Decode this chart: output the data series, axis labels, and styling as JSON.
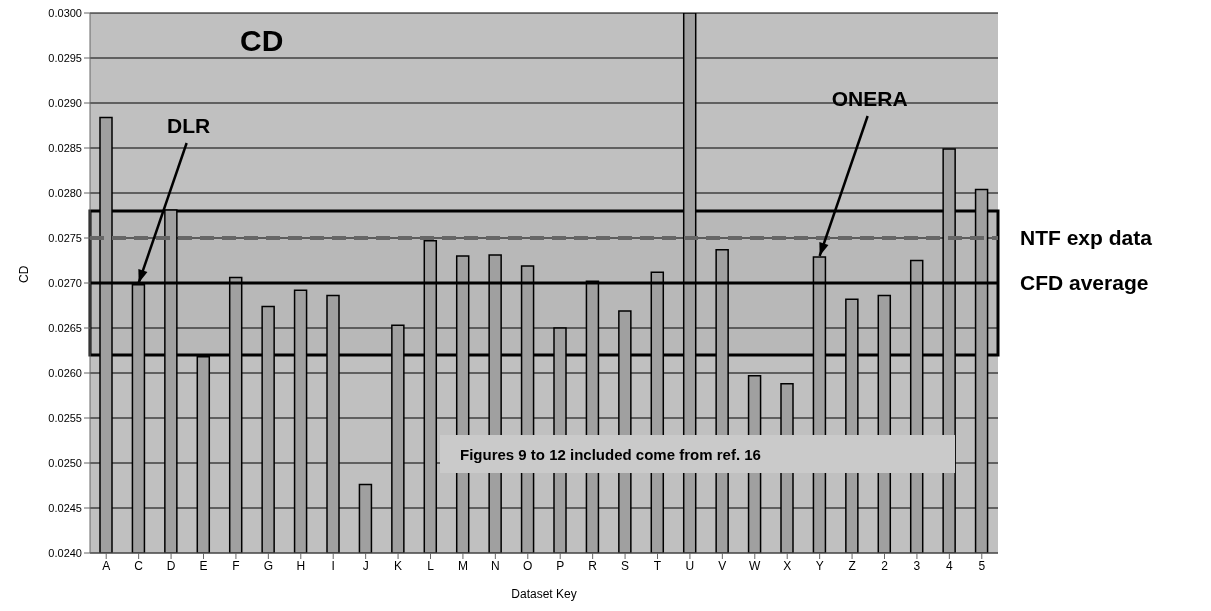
{
  "chart_data": {
    "type": "bar",
    "title": "CD",
    "xlabel": "Dataset Key",
    "ylabel": "CD",
    "categories": [
      "A",
      "C",
      "D",
      "E",
      "F",
      "G",
      "H",
      "I",
      "J",
      "K",
      "L",
      "M",
      "N",
      "O",
      "P",
      "R",
      "S",
      "T",
      "U",
      "V",
      "W",
      "X",
      "Y",
      "Z",
      "2",
      "3",
      "4",
      "5"
    ],
    "values": [
      0.02884,
      0.02698,
      0.02781,
      0.02618,
      0.02706,
      0.02674,
      0.02692,
      0.02686,
      0.02476,
      0.02653,
      0.02747,
      0.0273,
      0.02731,
      0.02719,
      0.0265,
      0.02702,
      0.02669,
      0.02712,
      0.03,
      0.02737,
      0.02597,
      0.02588,
      0.02729,
      0.02682,
      0.02686,
      0.02725,
      0.02849,
      0.02804
    ],
    "color": "#a0a0a0",
    "ylim": [
      0.024,
      0.03
    ],
    "yticks": [
      {
        "value": 0.024,
        "label": "0.0240"
      },
      {
        "value": 0.0245,
        "label": "0.0245"
      },
      {
        "value": 0.025,
        "label": "0.0250"
      },
      {
        "value": 0.0255,
        "label": "0.0255"
      },
      {
        "value": 0.026,
        "label": "0.0260"
      },
      {
        "value": 0.0265,
        "label": "0.0265"
      },
      {
        "value": 0.027,
        "label": "0.0270"
      },
      {
        "value": 0.0275,
        "label": "0.0275"
      },
      {
        "value": 0.028,
        "label": "0.0280"
      },
      {
        "value": 0.0285,
        "label": "0.0285"
      },
      {
        "value": 0.029,
        "label": "0.0290"
      },
      {
        "value": 0.0295,
        "label": "0.0295"
      },
      {
        "value": 0.03,
        "label": "0.0300"
      }
    ],
    "grid": "y",
    "ref_lines": [
      {
        "axis": "y",
        "value": 0.0275,
        "label": "NTF exp data",
        "color": "#666666",
        "line_style": "dashed"
      },
      {
        "axis": "y",
        "value": 0.027,
        "label": "CFD average",
        "color": "#000000",
        "line_style": "solid"
      }
    ],
    "bands": [
      {
        "axis": "y",
        "from": 0.0262,
        "to": 0.0278,
        "color": "#000000"
      }
    ],
    "annotations": [
      {
        "text": "DLR",
        "x": "C",
        "y": 0.027
      },
      {
        "text": "ONERA",
        "x": "Y",
        "y": 0.0273
      },
      "Figures 9 to 12 included come from ref. 16"
    ]
  }
}
